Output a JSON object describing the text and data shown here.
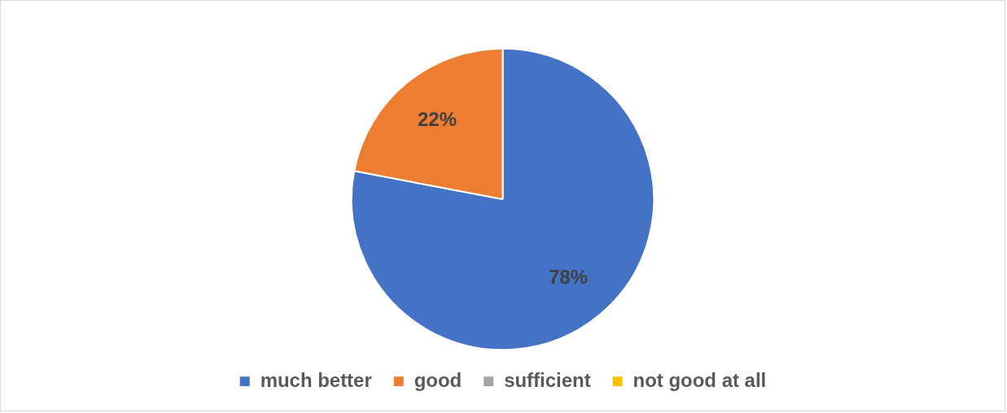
{
  "chart_data": {
    "type": "pie",
    "categories": [
      "much better",
      "good",
      "sufficient",
      "not good at all"
    ],
    "values": [
      78,
      22,
      0,
      0
    ],
    "colors": [
      "#4472c4",
      "#ed7d31",
      "#a5a5a5",
      "#ffc000"
    ],
    "value_labels": [
      "78%",
      "22%",
      null,
      null
    ],
    "legend": "bottom"
  }
}
